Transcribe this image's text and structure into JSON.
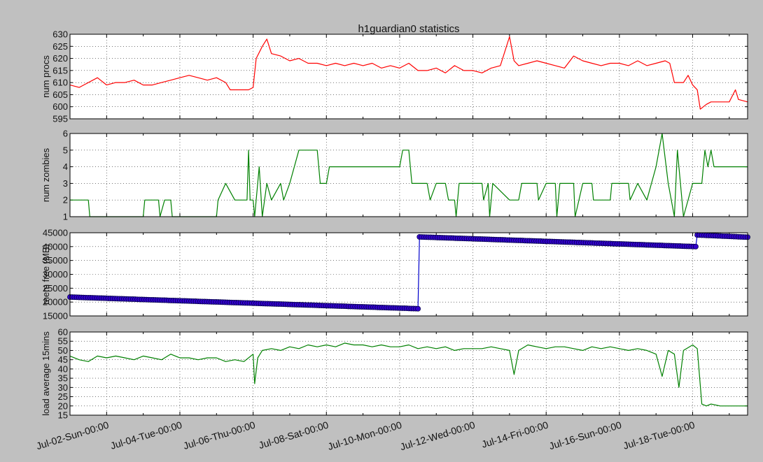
{
  "figure": {
    "title": "h1guardian0 statistics",
    "background": "#c0c0c0"
  },
  "chart_data": [
    {
      "type": "line",
      "ylabel": "num procs",
      "ylim": [
        595,
        630
      ],
      "yticks": [
        595,
        600,
        605,
        610,
        615,
        620,
        625,
        630
      ],
      "grid": true,
      "color": "#ff0000",
      "x_range": [
        "Jul-01 00:00",
        "Jul-19 12:00"
      ],
      "points": [
        [
          "Jul-01 00:00",
          609
        ],
        [
          "Jul-01 06:00",
          608
        ],
        [
          "Jul-01 12:00",
          610
        ],
        [
          "Jul-01 18:00",
          612
        ],
        [
          "Jul-02 00:00",
          609
        ],
        [
          "Jul-02 06:00",
          610
        ],
        [
          "Jul-02 12:00",
          610
        ],
        [
          "Jul-02 18:00",
          611
        ],
        [
          "Jul-03 00:00",
          609
        ],
        [
          "Jul-03 06:00",
          609
        ],
        [
          "Jul-03 12:00",
          610
        ],
        [
          "Jul-03 18:00",
          611
        ],
        [
          "Jul-04 00:00",
          612
        ],
        [
          "Jul-04 06:00",
          613
        ],
        [
          "Jul-04 12:00",
          612
        ],
        [
          "Jul-04 18:00",
          611
        ],
        [
          "Jul-05 00:00",
          612
        ],
        [
          "Jul-05 06:00",
          610
        ],
        [
          "Jul-05 09:00",
          607
        ],
        [
          "Jul-05 21:00",
          607
        ],
        [
          "Jul-06 00:00",
          608
        ],
        [
          "Jul-06 02:00",
          620
        ],
        [
          "Jul-06 06:00",
          625
        ],
        [
          "Jul-06 09:00",
          628
        ],
        [
          "Jul-06 12:00",
          622
        ],
        [
          "Jul-06 18:00",
          621
        ],
        [
          "Jul-07 00:00",
          619
        ],
        [
          "Jul-07 06:00",
          620
        ],
        [
          "Jul-07 12:00",
          618
        ],
        [
          "Jul-07 18:00",
          618
        ],
        [
          "Jul-08 00:00",
          617
        ],
        [
          "Jul-08 06:00",
          618
        ],
        [
          "Jul-08 12:00",
          617
        ],
        [
          "Jul-08 18:00",
          618
        ],
        [
          "Jul-09 00:00",
          617
        ],
        [
          "Jul-09 06:00",
          618
        ],
        [
          "Jul-09 12:00",
          616
        ],
        [
          "Jul-09 18:00",
          617
        ],
        [
          "Jul-10 00:00",
          616
        ],
        [
          "Jul-10 06:00",
          618
        ],
        [
          "Jul-10 12:00",
          615
        ],
        [
          "Jul-10 18:00",
          615
        ],
        [
          "Jul-11 00:00",
          616
        ],
        [
          "Jul-11 06:00",
          614
        ],
        [
          "Jul-11 12:00",
          617
        ],
        [
          "Jul-11 18:00",
          615
        ],
        [
          "Jul-12 00:00",
          615
        ],
        [
          "Jul-12 06:00",
          614
        ],
        [
          "Jul-12 12:00",
          616
        ],
        [
          "Jul-12 18:00",
          617
        ],
        [
          "Jul-13 00:00",
          629
        ],
        [
          "Jul-13 03:00",
          619
        ],
        [
          "Jul-13 06:00",
          617
        ],
        [
          "Jul-13 12:00",
          618
        ],
        [
          "Jul-13 18:00",
          619
        ],
        [
          "Jul-14 00:00",
          618
        ],
        [
          "Jul-14 06:00",
          617
        ],
        [
          "Jul-14 12:00",
          616
        ],
        [
          "Jul-14 18:00",
          621
        ],
        [
          "Jul-15 00:00",
          619
        ],
        [
          "Jul-15 06:00",
          618
        ],
        [
          "Jul-15 12:00",
          617
        ],
        [
          "Jul-15 18:00",
          618
        ],
        [
          "Jul-16 00:00",
          618
        ],
        [
          "Jul-16 06:00",
          617
        ],
        [
          "Jul-16 12:00",
          619
        ],
        [
          "Jul-16 18:00",
          617
        ],
        [
          "Jul-17 00:00",
          618
        ],
        [
          "Jul-17 06:00",
          619
        ],
        [
          "Jul-17 09:00",
          618
        ],
        [
          "Jul-17 12:00",
          610
        ],
        [
          "Jul-17 18:00",
          610
        ],
        [
          "Jul-17 21:00",
          613
        ],
        [
          "Jul-18 00:00",
          609
        ],
        [
          "Jul-18 03:00",
          607
        ],
        [
          "Jul-18 05:00",
          599
        ],
        [
          "Jul-18 09:00",
          601
        ],
        [
          "Jul-18 12:00",
          602
        ],
        [
          "Jul-18 18:00",
          602
        ],
        [
          "Jul-19 00:00",
          602
        ],
        [
          "Jul-19 04:00",
          607
        ],
        [
          "Jul-19 06:00",
          603
        ],
        [
          "Jul-19 12:00",
          602
        ]
      ]
    },
    {
      "type": "line",
      "ylabel": "num zombies",
      "ylim": [
        1,
        6
      ],
      "yticks": [
        1,
        2,
        3,
        4,
        5,
        6
      ],
      "grid": true,
      "color": "#008000",
      "x_range": [
        "Jul-01 00:00",
        "Jul-19 12:00"
      ],
      "points": [
        [
          "Jul-01 00:00",
          2
        ],
        [
          "Jul-01 12:00",
          2
        ],
        [
          "Jul-01 13:00",
          1
        ],
        [
          "Jul-02 00:00",
          1
        ],
        [
          "Jul-03 00:00",
          1
        ],
        [
          "Jul-03 01:00",
          2
        ],
        [
          "Jul-03 10:00",
          2
        ],
        [
          "Jul-03 11:00",
          1
        ],
        [
          "Jul-03 14:00",
          2
        ],
        [
          "Jul-03 18:00",
          2
        ],
        [
          "Jul-03 19:00",
          1
        ],
        [
          "Jul-04 00:00",
          1
        ],
        [
          "Jul-05 00:00",
          1
        ],
        [
          "Jul-05 01:00",
          2
        ],
        [
          "Jul-05 06:00",
          3
        ],
        [
          "Jul-05 12:00",
          2
        ],
        [
          "Jul-05 20:00",
          2
        ],
        [
          "Jul-05 21:00",
          5
        ],
        [
          "Jul-05 22:00",
          2
        ],
        [
          "Jul-06 00:00",
          2
        ],
        [
          "Jul-06 01:00",
          1
        ],
        [
          "Jul-06 04:00",
          4
        ],
        [
          "Jul-06 06:00",
          1
        ],
        [
          "Jul-06 09:00",
          3
        ],
        [
          "Jul-06 12:00",
          2
        ],
        [
          "Jul-06 18:00",
          3
        ],
        [
          "Jul-06 20:00",
          2
        ],
        [
          "Jul-07 00:00",
          3
        ],
        [
          "Jul-07 06:00",
          5
        ],
        [
          "Jul-07 18:00",
          5
        ],
        [
          "Jul-07 20:00",
          3
        ],
        [
          "Jul-08 00:00",
          3
        ],
        [
          "Jul-08 02:00",
          4
        ],
        [
          "Jul-09 00:00",
          4
        ],
        [
          "Jul-10 00:00",
          4
        ],
        [
          "Jul-10 02:00",
          5
        ],
        [
          "Jul-10 06:00",
          5
        ],
        [
          "Jul-10 08:00",
          3
        ],
        [
          "Jul-10 18:00",
          3
        ],
        [
          "Jul-10 20:00",
          2
        ],
        [
          "Jul-11 00:00",
          3
        ],
        [
          "Jul-11 06:00",
          3
        ],
        [
          "Jul-11 08:00",
          2
        ],
        [
          "Jul-11 12:00",
          2
        ],
        [
          "Jul-11 13:00",
          1
        ],
        [
          "Jul-11 15:00",
          3
        ],
        [
          "Jul-12 00:00",
          3
        ],
        [
          "Jul-12 06:00",
          3
        ],
        [
          "Jul-12 07:00",
          2
        ],
        [
          "Jul-12 10:00",
          3
        ],
        [
          "Jul-12 11:00",
          1
        ],
        [
          "Jul-12 13:00",
          3
        ],
        [
          "Jul-13 00:00",
          2
        ],
        [
          "Jul-13 06:00",
          2
        ],
        [
          "Jul-13 08:00",
          3
        ],
        [
          "Jul-13 18:00",
          3
        ],
        [
          "Jul-13 19:00",
          2
        ],
        [
          "Jul-14 00:00",
          3
        ],
        [
          "Jul-14 06:00",
          3
        ],
        [
          "Jul-14 07:00",
          1
        ],
        [
          "Jul-14 09:00",
          3
        ],
        [
          "Jul-14 18:00",
          3
        ],
        [
          "Jul-14 19:00",
          1
        ],
        [
          "Jul-15 00:00",
          3
        ],
        [
          "Jul-15 06:00",
          3
        ],
        [
          "Jul-15 07:00",
          2
        ],
        [
          "Jul-15 18:00",
          2
        ],
        [
          "Jul-15 19:00",
          3
        ],
        [
          "Jul-16 00:00",
          3
        ],
        [
          "Jul-16 06:00",
          3
        ],
        [
          "Jul-16 07:00",
          2
        ],
        [
          "Jul-16 12:00",
          3
        ],
        [
          "Jul-16 18:00",
          2
        ],
        [
          "Jul-17 00:00",
          4
        ],
        [
          "Jul-17 04:00",
          6
        ],
        [
          "Jul-17 08:00",
          3
        ],
        [
          "Jul-17 12:00",
          1
        ],
        [
          "Jul-17 14:00",
          5
        ],
        [
          "Jul-17 18:00",
          1
        ],
        [
          "Jul-18 00:00",
          3
        ],
        [
          "Jul-18 06:00",
          3
        ],
        [
          "Jul-18 08:00",
          5
        ],
        [
          "Jul-18 10:00",
          4
        ],
        [
          "Jul-18 12:00",
          5
        ],
        [
          "Jul-18 14:00",
          4
        ],
        [
          "Jul-19 00:00",
          4
        ],
        [
          "Jul-19 12:00",
          4
        ]
      ]
    },
    {
      "type": "line",
      "ylabel": "mem free (MB)",
      "ylim": [
        15000,
        45000
      ],
      "yticks": [
        15000,
        20000,
        25000,
        30000,
        35000,
        40000,
        45000
      ],
      "grid": true,
      "color": "#0000cc",
      "marker_color": "#3300cc",
      "markers": true,
      "x_range": [
        "Jul-01 00:00",
        "Jul-19 12:00"
      ],
      "points": [
        [
          "Jul-01 00:00",
          21800
        ],
        [
          "Jul-10 12:00",
          17600
        ],
        [
          "Jul-10 13:00",
          43500
        ],
        [
          "Jul-18 02:00",
          40000
        ],
        [
          "Jul-18 03:00",
          44200
        ],
        [
          "Jul-19 12:00",
          43400
        ]
      ]
    },
    {
      "type": "line",
      "ylabel": "load average 15mins",
      "ylim": [
        15,
        60
      ],
      "yticks": [
        15,
        20,
        25,
        30,
        35,
        40,
        45,
        50,
        55,
        60
      ],
      "grid": true,
      "color": "#008000",
      "x_range": [
        "Jul-01 00:00",
        "Jul-19 12:00"
      ],
      "points": [
        [
          "Jul-01 00:00",
          47
        ],
        [
          "Jul-01 06:00",
          45
        ],
        [
          "Jul-01 12:00",
          44
        ],
        [
          "Jul-01 18:00",
          47
        ],
        [
          "Jul-02 00:00",
          46
        ],
        [
          "Jul-02 06:00",
          47
        ],
        [
          "Jul-02 12:00",
          46
        ],
        [
          "Jul-02 18:00",
          45
        ],
        [
          "Jul-03 00:00",
          47
        ],
        [
          "Jul-03 06:00",
          46
        ],
        [
          "Jul-03 12:00",
          45
        ],
        [
          "Jul-03 18:00",
          48
        ],
        [
          "Jul-04 00:00",
          46
        ],
        [
          "Jul-04 06:00",
          46
        ],
        [
          "Jul-04 12:00",
          45
        ],
        [
          "Jul-04 18:00",
          46
        ],
        [
          "Jul-05 00:00",
          46
        ],
        [
          "Jul-05 06:00",
          44
        ],
        [
          "Jul-05 12:00",
          45
        ],
        [
          "Jul-05 18:00",
          44
        ],
        [
          "Jul-06 00:00",
          48
        ],
        [
          "Jul-06 01:00",
          32
        ],
        [
          "Jul-06 03:00",
          46
        ],
        [
          "Jul-06 06:00",
          50
        ],
        [
          "Jul-06 12:00",
          51
        ],
        [
          "Jul-06 18:00",
          50
        ],
        [
          "Jul-07 00:00",
          52
        ],
        [
          "Jul-07 06:00",
          51
        ],
        [
          "Jul-07 12:00",
          53
        ],
        [
          "Jul-07 18:00",
          52
        ],
        [
          "Jul-08 00:00",
          53
        ],
        [
          "Jul-08 06:00",
          52
        ],
        [
          "Jul-08 12:00",
          54
        ],
        [
          "Jul-08 18:00",
          53
        ],
        [
          "Jul-09 00:00",
          53
        ],
        [
          "Jul-09 06:00",
          52
        ],
        [
          "Jul-09 12:00",
          53
        ],
        [
          "Jul-09 18:00",
          52
        ],
        [
          "Jul-10 00:00",
          52
        ],
        [
          "Jul-10 06:00",
          53
        ],
        [
          "Jul-10 12:00",
          51
        ],
        [
          "Jul-10 18:00",
          52
        ],
        [
          "Jul-11 00:00",
          51
        ],
        [
          "Jul-11 06:00",
          52
        ],
        [
          "Jul-11 12:00",
          50
        ],
        [
          "Jul-11 18:00",
          51
        ],
        [
          "Jul-12 00:00",
          51
        ],
        [
          "Jul-12 06:00",
          51
        ],
        [
          "Jul-12 12:00",
          52
        ],
        [
          "Jul-12 18:00",
          51
        ],
        [
          "Jul-13 00:00",
          50
        ],
        [
          "Jul-13 03:00",
          37
        ],
        [
          "Jul-13 06:00",
          50
        ],
        [
          "Jul-13 12:00",
          53
        ],
        [
          "Jul-13 18:00",
          52
        ],
        [
          "Jul-14 00:00",
          51
        ],
        [
          "Jul-14 06:00",
          52
        ],
        [
          "Jul-14 12:00",
          52
        ],
        [
          "Jul-14 18:00",
          51
        ],
        [
          "Jul-15 00:00",
          50
        ],
        [
          "Jul-15 06:00",
          52
        ],
        [
          "Jul-15 12:00",
          51
        ],
        [
          "Jul-15 18:00",
          52
        ],
        [
          "Jul-16 00:00",
          51
        ],
        [
          "Jul-16 06:00",
          50
        ],
        [
          "Jul-16 12:00",
          51
        ],
        [
          "Jul-16 18:00",
          50
        ],
        [
          "Jul-17 00:00",
          48
        ],
        [
          "Jul-17 04:00",
          36
        ],
        [
          "Jul-17 08:00",
          50
        ],
        [
          "Jul-17 12:00",
          48
        ],
        [
          "Jul-17 15:00",
          30
        ],
        [
          "Jul-17 18:00",
          50
        ],
        [
          "Jul-18 00:00",
          53
        ],
        [
          "Jul-18 03:00",
          51
        ],
        [
          "Jul-18 06:00",
          21
        ],
        [
          "Jul-18 09:00",
          20
        ],
        [
          "Jul-18 12:00",
          21
        ],
        [
          "Jul-18 18:00",
          20
        ],
        [
          "Jul-19 00:00",
          20
        ],
        [
          "Jul-19 12:00",
          20
        ]
      ]
    }
  ],
  "x_axis": {
    "tick_labels": [
      "Jul-02-Sun-00:00",
      "Jul-04-Tue-00:00",
      "Jul-06-Thu-00:00",
      "Jul-08-Sat-00:00",
      "Jul-10-Mon-00:00",
      "Jul-12-Wed-00:00",
      "Jul-14-Fri-00:00",
      "Jul-16-Sun-00:00",
      "Jul-18-Tue-00:00"
    ],
    "tick_dates": [
      "Jul-02 00:00",
      "Jul-04 00:00",
      "Jul-06 00:00",
      "Jul-08 00:00",
      "Jul-10 00:00",
      "Jul-12 00:00",
      "Jul-14 00:00",
      "Jul-16 00:00",
      "Jul-18 00:00"
    ],
    "minor_tick_dates": [
      "Jul-01 00:00",
      "Jul-03 00:00",
      "Jul-05 00:00",
      "Jul-07 00:00",
      "Jul-09 00:00",
      "Jul-11 00:00",
      "Jul-13 00:00",
      "Jul-15 00:00",
      "Jul-17 00:00",
      "Jul-19 00:00"
    ]
  }
}
